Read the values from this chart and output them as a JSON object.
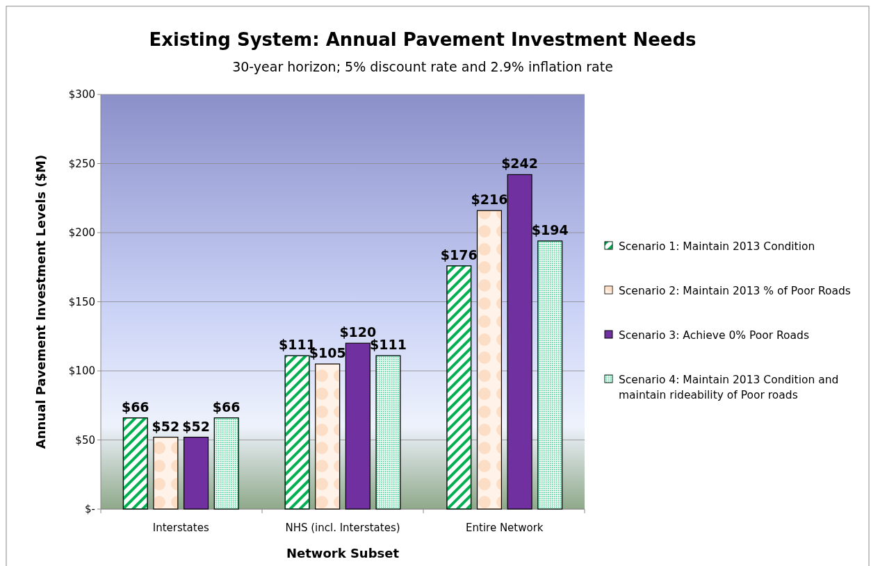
{
  "chart_data": {
    "type": "bar",
    "title": "Existing System:  Annual Pavement Investment Needs",
    "subtitle": "30-year horizon; 5% discount rate and 2.9% inflation rate",
    "xlabel": "Network Subset",
    "ylabel": "Annual Pavement Investment Levels ($M)",
    "categories": [
      "Interstates",
      "NHS (incl. Interstates)",
      "Entire Network"
    ],
    "series": [
      {
        "name": "Scenario 1:  Maintain 2013 Condition",
        "color": "#00b050",
        "values": [
          66,
          111,
          176
        ],
        "value_labels": [
          "$66",
          "$111",
          "$176"
        ]
      },
      {
        "name": "Scenario 2:  Maintain 2013 % of Poor Roads",
        "color": "#fac090",
        "values": [
          52,
          105,
          216
        ],
        "value_labels": [
          "$52",
          "$105",
          "$216"
        ]
      },
      {
        "name": "Scenario 3:  Achieve 0% Poor Roads",
        "color": "#7030a0",
        "values": [
          52,
          120,
          242
        ],
        "value_labels": [
          "$52",
          "$120",
          "$242"
        ]
      },
      {
        "name": "Scenario 4:  Maintain 2013 Condition and maintain rideability of Poor roads",
        "color": "#33cc88",
        "values": [
          66,
          111,
          194
        ],
        "value_labels": [
          "$66",
          "$111",
          "$194"
        ]
      }
    ],
    "ylim": [
      0,
      300
    ],
    "yticks": [
      {
        "value": 0,
        "label": "$-"
      },
      {
        "value": 50,
        "label": "$50"
      },
      {
        "value": 100,
        "label": "$100"
      },
      {
        "value": 150,
        "label": "$150"
      },
      {
        "value": 200,
        "label": "$200"
      },
      {
        "value": 250,
        "label": "$250"
      },
      {
        "value": 300,
        "label": "$300"
      }
    ],
    "grid": "y",
    "legend": "right"
  }
}
